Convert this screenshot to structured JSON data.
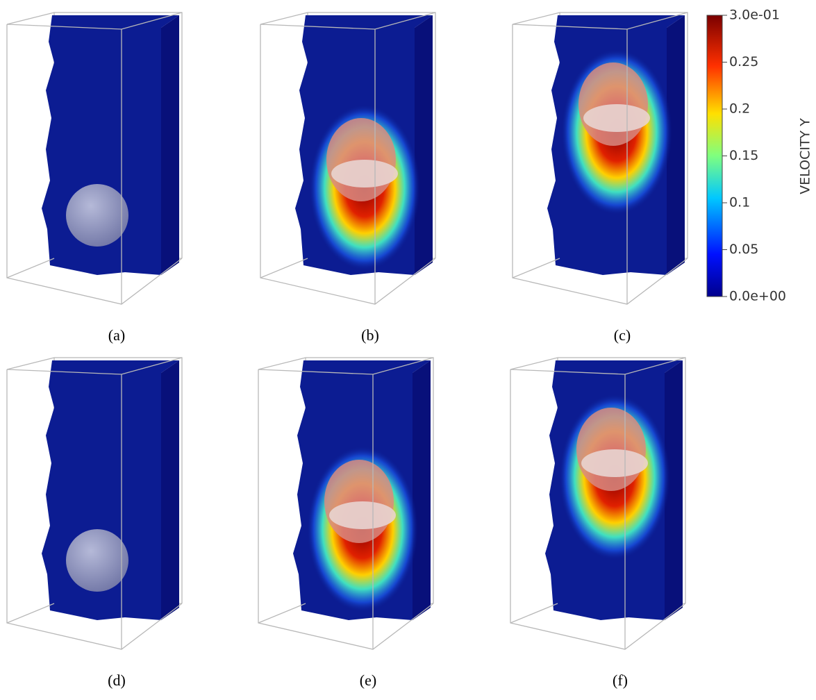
{
  "panels": [
    {
      "label": "(a)"
    },
    {
      "label": "(b)"
    },
    {
      "label": "(c)"
    },
    {
      "label": "(d)"
    },
    {
      "label": "(e)"
    },
    {
      "label": "(f)"
    }
  ],
  "colorbar": {
    "title": "VELOCITY Y",
    "range": [
      0,
      0.3
    ],
    "ticks": [
      {
        "value": 0.3,
        "label": "3.0e-01"
      },
      0.25,
      0.2,
      0.15,
      0.1,
      0.05,
      {
        "value": 0,
        "label": "0.0e+00"
      }
    ]
  }
}
